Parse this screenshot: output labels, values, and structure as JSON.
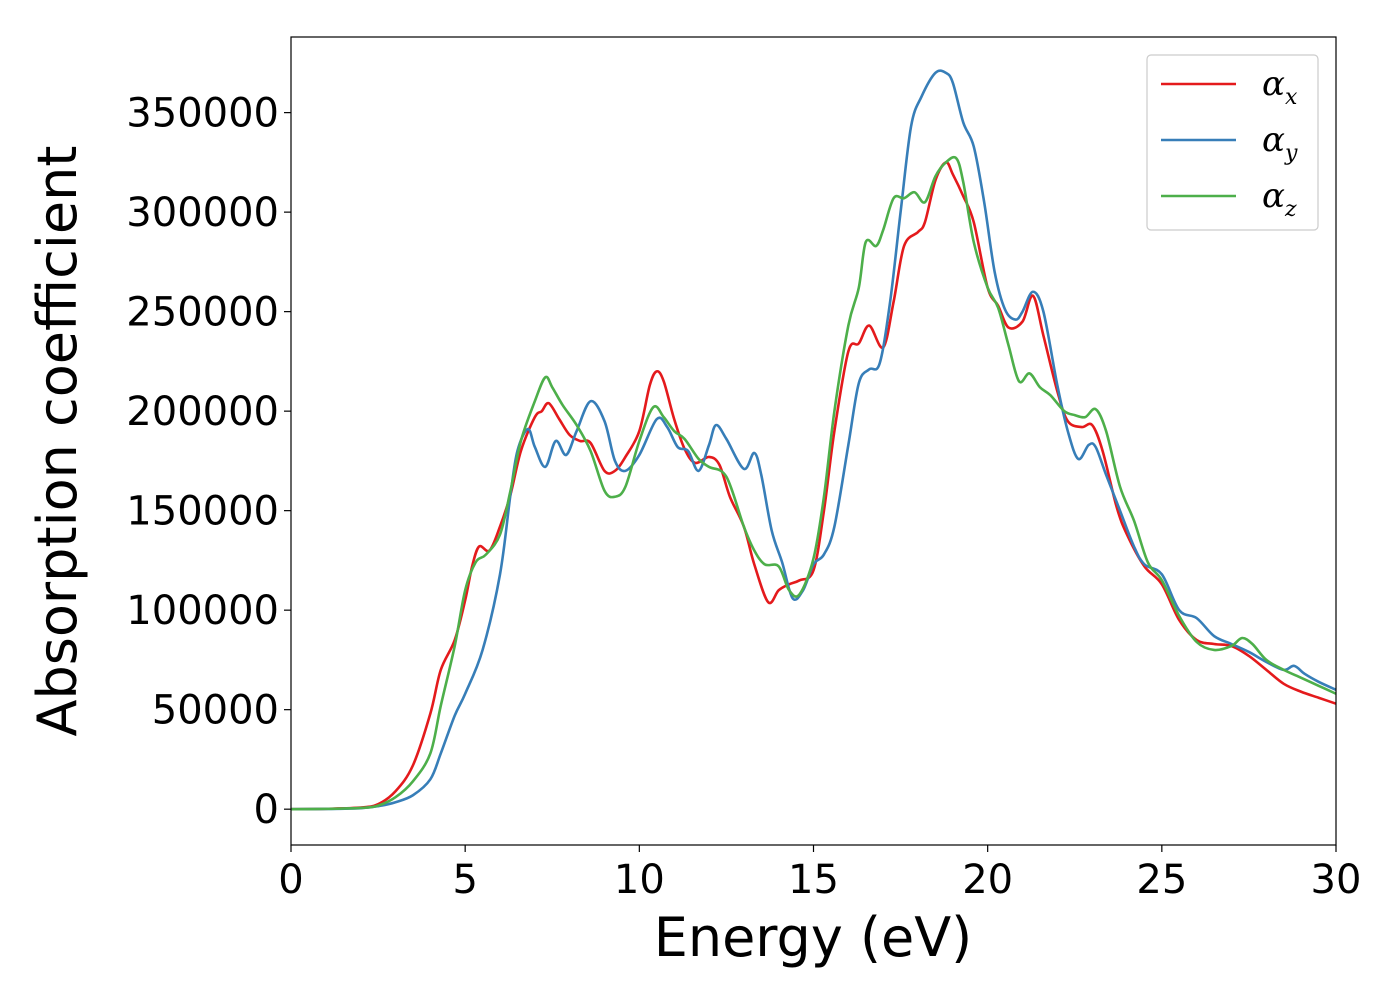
{
  "chart_data": {
    "type": "line",
    "xlabel": "Energy (eV)",
    "ylabel": "Absorption coefficient",
    "xlim": [
      0,
      30
    ],
    "ylim": [
      -18000,
      388000
    ],
    "x_ticks": [
      0,
      5,
      10,
      15,
      20,
      25,
      30
    ],
    "y_ticks": [
      0,
      50000,
      100000,
      150000,
      200000,
      250000,
      300000,
      350000
    ],
    "grid": false,
    "legend_position": "top-right",
    "series": [
      {
        "name": "α_x",
        "symbol": "α",
        "subscript": "x",
        "color": "#e41a1c",
        "points": [
          [
            0,
            0
          ],
          [
            1,
            200
          ],
          [
            2,
            800
          ],
          [
            2.5,
            2500
          ],
          [
            3,
            9000
          ],
          [
            3.5,
            22000
          ],
          [
            4,
            48000
          ],
          [
            4.3,
            70000
          ],
          [
            4.7,
            85000
          ],
          [
            5,
            105000
          ],
          [
            5.2,
            122000
          ],
          [
            5.4,
            132000
          ],
          [
            5.7,
            130000
          ],
          [
            6,
            142000
          ],
          [
            6.3,
            158000
          ],
          [
            6.6,
            180000
          ],
          [
            7,
            197000
          ],
          [
            7.2,
            200000
          ],
          [
            7.4,
            204000
          ],
          [
            7.7,
            196000
          ],
          [
            8,
            188000
          ],
          [
            8.3,
            185000
          ],
          [
            8.6,
            184000
          ],
          [
            9,
            170000
          ],
          [
            9.3,
            170000
          ],
          [
            9.6,
            177000
          ],
          [
            10,
            190000
          ],
          [
            10.3,
            213000
          ],
          [
            10.5,
            220000
          ],
          [
            10.7,
            215000
          ],
          [
            11,
            196000
          ],
          [
            11.3,
            181000
          ],
          [
            11.6,
            174000
          ],
          [
            12,
            177000
          ],
          [
            12.3,
            173000
          ],
          [
            12.6,
            157000
          ],
          [
            13,
            142000
          ],
          [
            13.3,
            123000
          ],
          [
            13.7,
            104000
          ],
          [
            14,
            110000
          ],
          [
            14.3,
            113000
          ],
          [
            14.6,
            115000
          ],
          [
            15,
            120000
          ],
          [
            15.3,
            150000
          ],
          [
            15.6,
            190000
          ],
          [
            16,
            230000
          ],
          [
            16.3,
            234000
          ],
          [
            16.6,
            243000
          ],
          [
            17,
            232000
          ],
          [
            17.3,
            255000
          ],
          [
            17.6,
            283000
          ],
          [
            18,
            290000
          ],
          [
            18.2,
            295000
          ],
          [
            18.5,
            316000
          ],
          [
            18.8,
            325000
          ],
          [
            19,
            319000
          ],
          [
            19.3,
            308000
          ],
          [
            19.6,
            295000
          ],
          [
            20,
            262000
          ],
          [
            20.3,
            253000
          ],
          [
            20.6,
            242000
          ],
          [
            21,
            245000
          ],
          [
            21.3,
            258000
          ],
          [
            21.6,
            238000
          ],
          [
            22,
            210000
          ],
          [
            22.3,
            195000
          ],
          [
            22.7,
            192000
          ],
          [
            23,
            193000
          ],
          [
            23.3,
            180000
          ],
          [
            23.7,
            152000
          ],
          [
            24,
            138000
          ],
          [
            24.5,
            122000
          ],
          [
            25,
            113000
          ],
          [
            25.5,
            95000
          ],
          [
            26,
            85000
          ],
          [
            26.5,
            83000
          ],
          [
            27,
            82000
          ],
          [
            27.5,
            77000
          ],
          [
            28,
            70000
          ],
          [
            28.5,
            63000
          ],
          [
            29,
            59000
          ],
          [
            29.5,
            56000
          ],
          [
            30,
            53000
          ]
        ]
      },
      {
        "name": "α_y",
        "symbol": "α",
        "subscript": "y",
        "color": "#377eb8",
        "points": [
          [
            0,
            0
          ],
          [
            1,
            100
          ],
          [
            2,
            500
          ],
          [
            2.5,
            1500
          ],
          [
            3,
            3500
          ],
          [
            3.5,
            7000
          ],
          [
            4,
            15000
          ],
          [
            4.3,
            28000
          ],
          [
            4.7,
            47000
          ],
          [
            5,
            58000
          ],
          [
            5.5,
            80000
          ],
          [
            6,
            118000
          ],
          [
            6.3,
            158000
          ],
          [
            6.5,
            180000
          ],
          [
            6.8,
            191000
          ],
          [
            7,
            182000
          ],
          [
            7.3,
            172000
          ],
          [
            7.6,
            185000
          ],
          [
            7.9,
            178000
          ],
          [
            8.2,
            190000
          ],
          [
            8.6,
            205000
          ],
          [
            9,
            195000
          ],
          [
            9.3,
            175000
          ],
          [
            9.6,
            170000
          ],
          [
            10,
            178000
          ],
          [
            10.5,
            196000
          ],
          [
            10.8,
            192000
          ],
          [
            11.1,
            182000
          ],
          [
            11.4,
            180000
          ],
          [
            11.7,
            170000
          ],
          [
            12,
            183000
          ],
          [
            12.2,
            193000
          ],
          [
            12.5,
            186000
          ],
          [
            13,
            171000
          ],
          [
            13.3,
            179000
          ],
          [
            13.5,
            168000
          ],
          [
            13.8,
            140000
          ],
          [
            14.1,
            124000
          ],
          [
            14.4,
            106000
          ],
          [
            14.7,
            110000
          ],
          [
            15,
            123000
          ],
          [
            15.3,
            128000
          ],
          [
            15.6,
            142000
          ],
          [
            16,
            183000
          ],
          [
            16.3,
            214000
          ],
          [
            16.6,
            221000
          ],
          [
            16.9,
            224000
          ],
          [
            17.2,
            255000
          ],
          [
            17.5,
            300000
          ],
          [
            17.8,
            343000
          ],
          [
            18.1,
            358000
          ],
          [
            18.5,
            370000
          ],
          [
            18.8,
            370000
          ],
          [
            19,
            365000
          ],
          [
            19.3,
            345000
          ],
          [
            19.6,
            333000
          ],
          [
            19.9,
            305000
          ],
          [
            20.2,
            270000
          ],
          [
            20.5,
            251000
          ],
          [
            20.8,
            246000
          ],
          [
            21,
            250000
          ],
          [
            21.3,
            260000
          ],
          [
            21.6,
            250000
          ],
          [
            22,
            213000
          ],
          [
            22.3,
            190000
          ],
          [
            22.6,
            176000
          ],
          [
            22.9,
            183000
          ],
          [
            23.1,
            182000
          ],
          [
            23.4,
            168000
          ],
          [
            23.8,
            150000
          ],
          [
            24.2,
            132000
          ],
          [
            24.5,
            123000
          ],
          [
            25,
            118000
          ],
          [
            25.5,
            100000
          ],
          [
            26,
            96000
          ],
          [
            26.5,
            87000
          ],
          [
            27,
            83000
          ],
          [
            27.5,
            79000
          ],
          [
            28,
            74000
          ],
          [
            28.5,
            70000
          ],
          [
            28.8,
            72000
          ],
          [
            29.1,
            68000
          ],
          [
            29.5,
            64000
          ],
          [
            30,
            60000
          ]
        ]
      },
      {
        "name": "α_z",
        "symbol": "α",
        "subscript": "z",
        "color": "#4daf4a",
        "points": [
          [
            0,
            0
          ],
          [
            1,
            150
          ],
          [
            2,
            600
          ],
          [
            2.5,
            1800
          ],
          [
            3,
            6000
          ],
          [
            3.5,
            14000
          ],
          [
            4,
            28000
          ],
          [
            4.3,
            52000
          ],
          [
            4.7,
            82000
          ],
          [
            5,
            110000
          ],
          [
            5.3,
            124000
          ],
          [
            5.6,
            128000
          ],
          [
            6,
            138000
          ],
          [
            6.3,
            160000
          ],
          [
            6.6,
            185000
          ],
          [
            7,
            205000
          ],
          [
            7.3,
            217000
          ],
          [
            7.5,
            212000
          ],
          [
            7.8,
            203000
          ],
          [
            8.2,
            193000
          ],
          [
            8.6,
            180000
          ],
          [
            9,
            160000
          ],
          [
            9.3,
            157000
          ],
          [
            9.6,
            162000
          ],
          [
            10,
            185000
          ],
          [
            10.4,
            202000
          ],
          [
            10.7,
            197000
          ],
          [
            11,
            190000
          ],
          [
            11.3,
            186000
          ],
          [
            11.7,
            176000
          ],
          [
            12,
            172000
          ],
          [
            12.5,
            167000
          ],
          [
            13,
            142000
          ],
          [
            13.3,
            130000
          ],
          [
            13.6,
            123000
          ],
          [
            14,
            122000
          ],
          [
            14.3,
            110000
          ],
          [
            14.6,
            108000
          ],
          [
            15,
            126000
          ],
          [
            15.3,
            157000
          ],
          [
            15.6,
            200000
          ],
          [
            16,
            243000
          ],
          [
            16.3,
            262000
          ],
          [
            16.5,
            285000
          ],
          [
            16.8,
            283000
          ],
          [
            17,
            291000
          ],
          [
            17.3,
            307000
          ],
          [
            17.6,
            307000
          ],
          [
            17.9,
            310000
          ],
          [
            18.2,
            305000
          ],
          [
            18.5,
            318000
          ],
          [
            18.8,
            325000
          ],
          [
            19.1,
            327000
          ],
          [
            19.3,
            315000
          ],
          [
            19.6,
            285000
          ],
          [
            20,
            262000
          ],
          [
            20.3,
            252000
          ],
          [
            20.6,
            233000
          ],
          [
            20.9,
            215000
          ],
          [
            21.2,
            219000
          ],
          [
            21.5,
            212000
          ],
          [
            21.8,
            208000
          ],
          [
            22.2,
            200000
          ],
          [
            22.5,
            198000
          ],
          [
            22.8,
            197000
          ],
          [
            23.1,
            201000
          ],
          [
            23.4,
            190000
          ],
          [
            23.8,
            162000
          ],
          [
            24.2,
            145000
          ],
          [
            24.6,
            124000
          ],
          [
            25,
            115000
          ],
          [
            25.5,
            97000
          ],
          [
            26,
            84000
          ],
          [
            26.5,
            80000
          ],
          [
            27,
            82000
          ],
          [
            27.3,
            86000
          ],
          [
            27.6,
            83000
          ],
          [
            28,
            75000
          ],
          [
            28.5,
            70000
          ],
          [
            29,
            66000
          ],
          [
            29.5,
            62000
          ],
          [
            30,
            58000
          ]
        ]
      }
    ]
  }
}
